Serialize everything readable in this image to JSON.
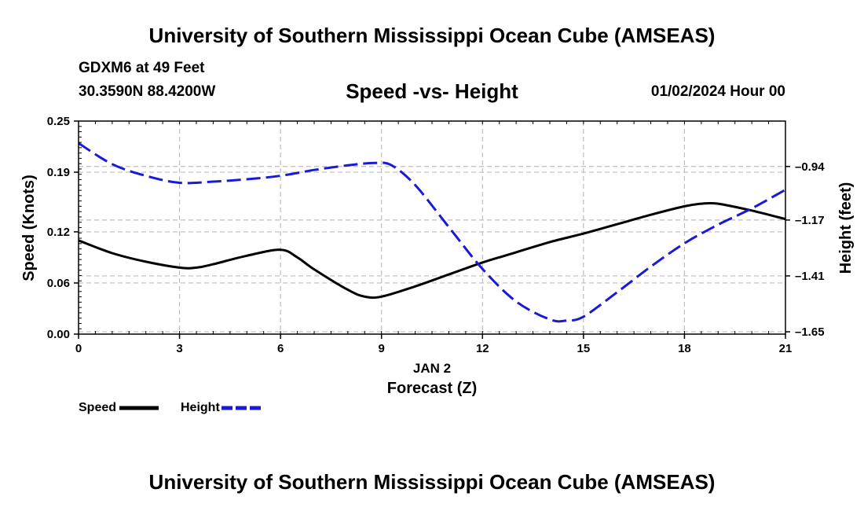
{
  "header": {
    "title": "University of Southern Mississippi Ocean Cube (AMSEAS)",
    "station": "GDXM6 at 49 Feet",
    "coords": "30.3590N  88.4200W",
    "datetime": "01/02/2024 Hour 00",
    "footer_title": "University of Southern Mississippi Ocean Cube (AMSEAS)"
  },
  "chart_data": {
    "type": "line",
    "title": "Speed -vs- Height",
    "xlabel": "Forecast (Z)",
    "xlabel_date": "JAN 2",
    "ylabel_left": "Speed (Knots)",
    "ylabel_right": "Height (feet)",
    "xlim": [
      0,
      21
    ],
    "ylim_left": [
      0,
      0.25
    ],
    "ylim_right": [
      -1.66,
      -0.745
    ],
    "x_ticks": [
      0,
      3,
      6,
      9,
      12,
      15,
      18,
      21
    ],
    "x_tick_labels": [
      "0",
      "3",
      "6",
      "9",
      "12",
      "15",
      "18",
      "21"
    ],
    "y_left_ticks": [
      0.0,
      0.06,
      0.12,
      0.19,
      0.25
    ],
    "y_left_tick_labels": [
      "0.00",
      "0.06",
      "0.12",
      "0.19",
      "0.25"
    ],
    "y_right_ticks": [
      -0.94,
      -1.17,
      -1.41,
      -1.65
    ],
    "y_right_tick_labels": [
      "-0.94",
      "-1.17",
      "-1.41",
      "-1.65"
    ],
    "grid": true,
    "legend_position": "bottom-left",
    "series": [
      {
        "name": "Speed",
        "axis": "left",
        "color": "#000000",
        "style": "solid",
        "x": [
          0,
          1,
          2,
          3,
          3.5,
          4,
          5,
          6,
          6.5,
          7,
          8,
          8.5,
          9,
          10,
          11,
          12,
          13,
          14,
          15,
          16,
          17,
          18,
          18.5,
          19,
          20,
          21
        ],
        "values": [
          0.11,
          0.095,
          0.085,
          0.078,
          0.078,
          0.082,
          0.092,
          0.099,
          0.09,
          0.076,
          0.052,
          0.044,
          0.044,
          0.056,
          0.07,
          0.084,
          0.096,
          0.108,
          0.118,
          0.129,
          0.14,
          0.15,
          0.153,
          0.153,
          0.145,
          0.135
        ]
      },
      {
        "name": "Height",
        "axis": "right",
        "color": "#1a1ad6",
        "style": "dashed",
        "x": [
          0,
          1,
          2,
          3,
          4,
          5,
          6,
          7,
          8,
          8.8,
          9.3,
          10,
          11,
          12,
          13,
          14,
          14.5,
          15,
          16,
          17,
          18,
          19,
          20,
          21
        ],
        "values": [
          -0.84,
          -0.93,
          -0.98,
          -1.01,
          -1.005,
          -0.995,
          -0.98,
          -0.955,
          -0.935,
          -0.925,
          -0.935,
          -1.02,
          -1.2,
          -1.38,
          -1.52,
          -1.597,
          -1.602,
          -1.585,
          -1.48,
          -1.37,
          -1.27,
          -1.19,
          -1.12,
          -1.04
        ]
      }
    ]
  }
}
